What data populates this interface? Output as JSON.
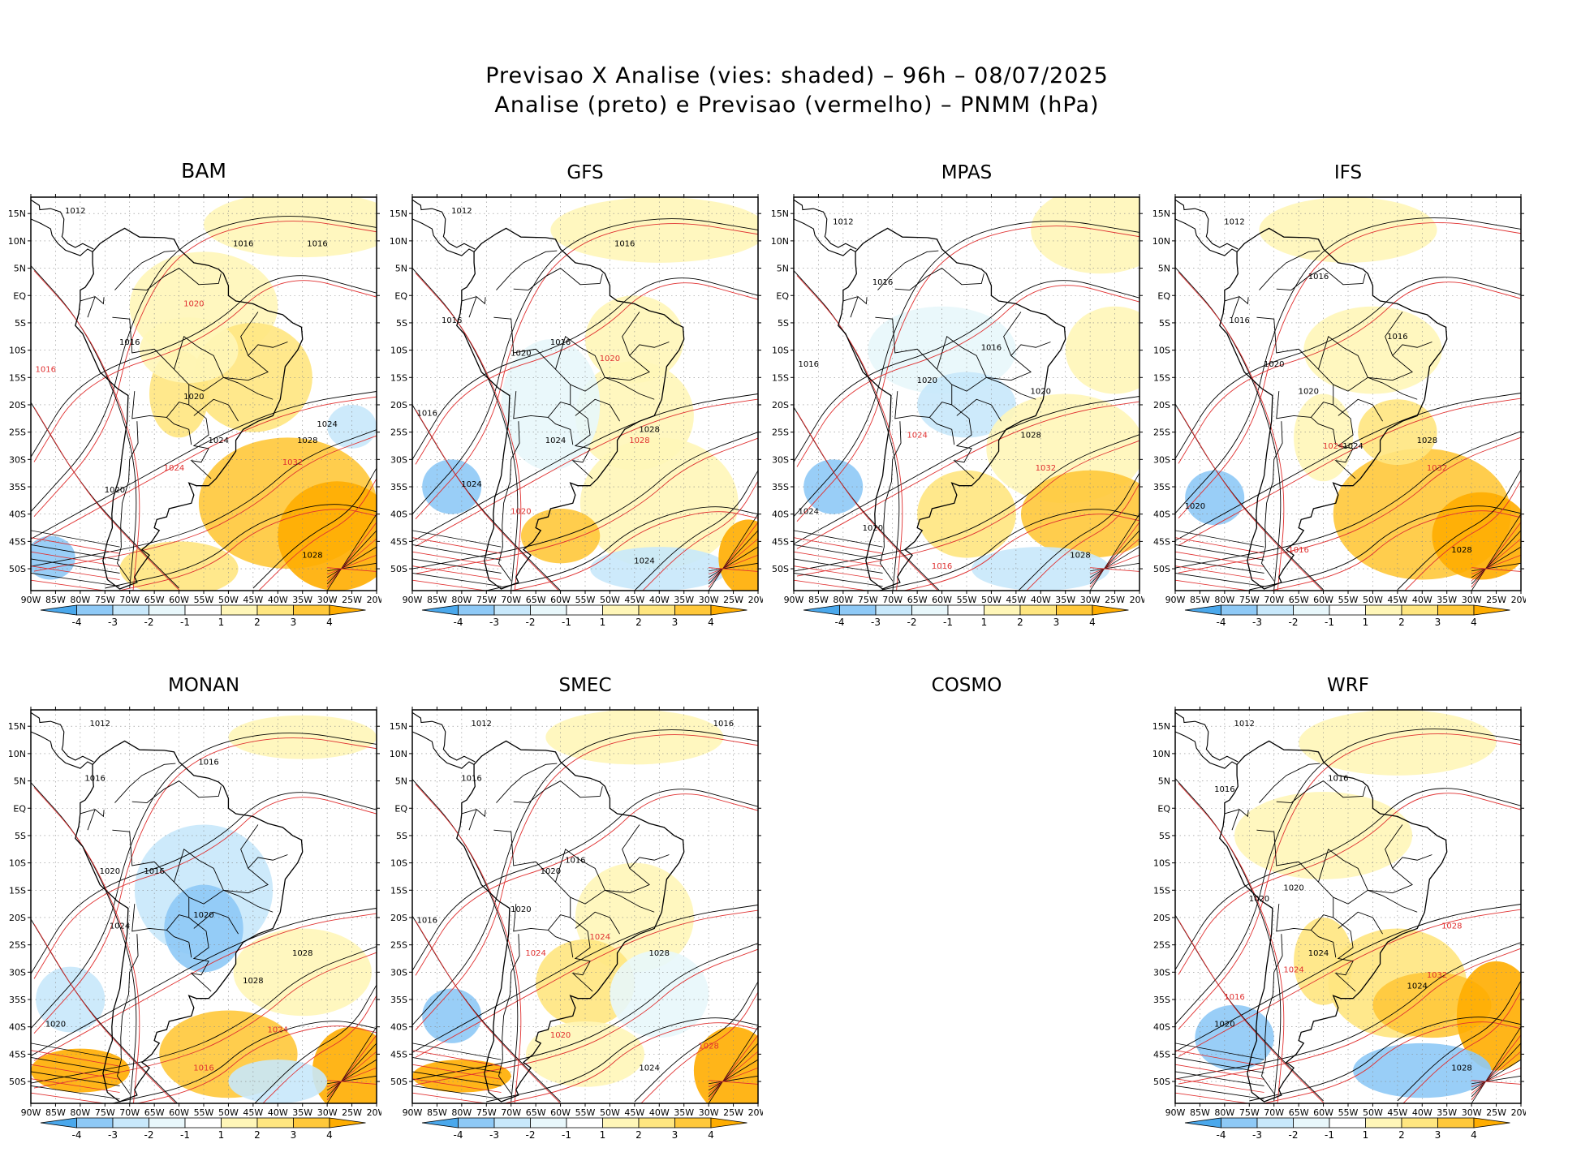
{
  "title_line1": "Previsao X Analise (vies: shaded) – 96h – 08/07/2025",
  "title_line2": "Analise (preto) e Previsao (vermelho) – PNMM (hPa)",
  "colors": {
    "neg4": "#4aa8ec",
    "neg3": "#8ec9f6",
    "neg2": "#c8e8fb",
    "neg1": "#e8f7fb",
    "zero": "#ffffff",
    "pos1": "#fff6b8",
    "pos2": "#ffe680",
    "pos3": "#ffc83a",
    "pos4": "#ffad00",
    "analysis_contour": "#000000",
    "forecast_contour": "#e03030"
  },
  "lat_ticks": [
    "15N",
    "10N",
    "5N",
    "EQ",
    "5S",
    "10S",
    "15S",
    "20S",
    "25S",
    "30S",
    "35S",
    "40S",
    "45S",
    "50S"
  ],
  "lon_ticks": [
    "90W",
    "85W",
    "80W",
    "75W",
    "70W",
    "65W",
    "60W",
    "55W",
    "50W",
    "45W",
    "40W",
    "35W",
    "30W",
    "25W",
    "20W"
  ],
  "colorbar_labels": [
    "-4",
    "-3",
    "-2",
    "-1",
    "1",
    "2",
    "3",
    "4"
  ],
  "panels": [
    {
      "model": "BAM",
      "has_map": true,
      "isobars": [
        "1012",
        "1016",
        "1016",
        "1016",
        "1020",
        "1020",
        "1024",
        "1024",
        "1028",
        "1032",
        "1028",
        "1024",
        "1016",
        "1020"
      ]
    },
    {
      "model": "GFS",
      "has_map": true,
      "isobars": [
        "1012",
        "1016",
        "1016",
        "1016",
        "1020",
        "1020",
        "1024",
        "1028",
        "1028",
        "1024",
        "1016",
        "1020",
        "1024"
      ]
    },
    {
      "model": "MPAS",
      "has_map": true,
      "isobars": [
        "1012",
        "1016",
        "1016",
        "1016",
        "1020",
        "1020",
        "1024",
        "1028",
        "1032",
        "1028",
        "1024",
        "1020",
        "1016"
      ]
    },
    {
      "model": "IFS",
      "has_map": true,
      "isobars": [
        "1012",
        "1016",
        "1016",
        "1016",
        "1020",
        "1020",
        "1024",
        "1028",
        "1032",
        "1028",
        "1024",
        "1020",
        "1016"
      ]
    },
    {
      "model": "MONAN",
      "has_map": true,
      "isobars": [
        "1012",
        "1016",
        "1016",
        "1016",
        "1020",
        "1020",
        "1024",
        "1028",
        "1028",
        "1024",
        "1020",
        "1016"
      ]
    },
    {
      "model": "SMEC",
      "has_map": true,
      "isobars": [
        "1012",
        "1016",
        "1016",
        "1016",
        "1020",
        "1020",
        "1024",
        "1024",
        "1028",
        "1028",
        "1024",
        "1020",
        "1016"
      ]
    },
    {
      "model": "COSMO",
      "has_map": false,
      "isobars": []
    },
    {
      "model": "WRF",
      "has_map": true,
      "isobars": [
        "1012",
        "1016",
        "1016",
        "1020",
        "1020",
        "1024",
        "1024",
        "1028",
        "1032",
        "1028",
        "1024",
        "1020",
        "1016"
      ]
    }
  ]
}
